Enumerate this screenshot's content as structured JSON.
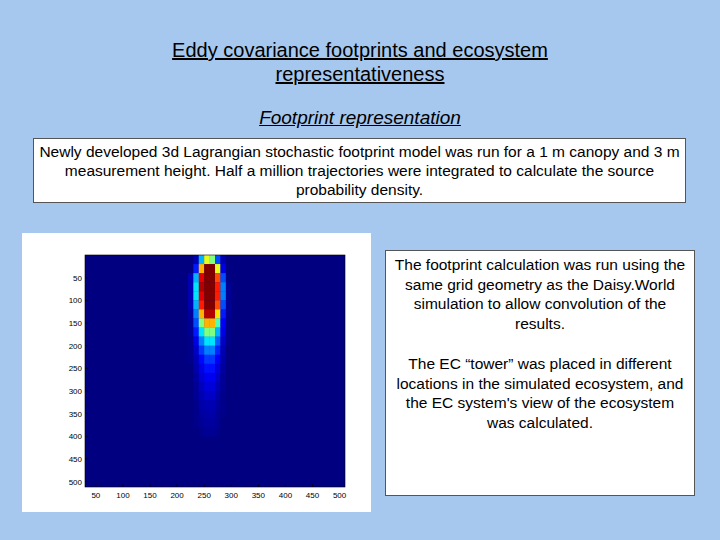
{
  "slide": {
    "title": "Eddy covariance footprints and ecosystem representativeness",
    "subtitle": "Footprint representation",
    "description": "Newly developed 3d Lagrangian stochastic footprint model was run for a 1 m canopy and 3 m measurement height. Half a million trajectories were integrated to calculate the source probability density.",
    "notes": [
      "The footprint calculation was run using the same grid geometry as the Daisy.World simulation to allow convolution of the results.",
      "The EC “tower” was placed in different locations in the simulated ecosystem, and the EC system's view of the ecosystem was calculated."
    ]
  },
  "chart_data": {
    "type": "heatmap",
    "x_edges": [
      220,
      230,
      240,
      250,
      260,
      270,
      280,
      290,
      300
    ],
    "y_edges": [
      0,
      20,
      40,
      60,
      80,
      100,
      120,
      140,
      160,
      180,
      200,
      220,
      240,
      260,
      280,
      300,
      320,
      340,
      360,
      380,
      400
    ],
    "cells": [
      [
        0,
        0.05,
        0.3,
        0.6,
        0.5,
        0.2,
        0.05,
        0
      ],
      [
        0,
        0.15,
        0.7,
        1,
        1,
        0.6,
        0.1,
        0
      ],
      [
        0.05,
        0.3,
        0.9,
        1,
        1,
        0.8,
        0.2,
        0
      ],
      [
        0.05,
        0.35,
        0.95,
        1,
        1,
        0.85,
        0.25,
        0.02
      ],
      [
        0.05,
        0.35,
        0.9,
        1,
        1,
        0.85,
        0.25,
        0.02
      ],
      [
        0.05,
        0.3,
        0.85,
        1,
        1,
        0.8,
        0.2,
        0.02
      ],
      [
        0.03,
        0.25,
        0.7,
        0.95,
        0.95,
        0.65,
        0.15,
        0.02
      ],
      [
        0.02,
        0.2,
        0.5,
        0.7,
        0.7,
        0.45,
        0.12,
        0.01
      ],
      [
        0.02,
        0.15,
        0.35,
        0.5,
        0.5,
        0.3,
        0.1,
        0.01
      ],
      [
        0.01,
        0.1,
        0.25,
        0.35,
        0.35,
        0.22,
        0.07,
        0.01
      ],
      [
        0.01,
        0.07,
        0.18,
        0.25,
        0.25,
        0.16,
        0.05,
        0
      ],
      [
        0.01,
        0.05,
        0.13,
        0.18,
        0.18,
        0.12,
        0.04,
        0
      ],
      [
        0,
        0.04,
        0.1,
        0.14,
        0.14,
        0.09,
        0.03,
        0
      ],
      [
        0,
        0.03,
        0.08,
        0.11,
        0.11,
        0.07,
        0.02,
        0
      ],
      [
        0,
        0.02,
        0.06,
        0.09,
        0.09,
        0.05,
        0.02,
        0
      ],
      [
        0,
        0.02,
        0.05,
        0.07,
        0.07,
        0.04,
        0.01,
        0
      ],
      [
        0,
        0.01,
        0.04,
        0.05,
        0.05,
        0.03,
        0.01,
        0
      ],
      [
        0,
        0.01,
        0.03,
        0.04,
        0.04,
        0.02,
        0.01,
        0
      ],
      [
        0,
        0.01,
        0.02,
        0.03,
        0.03,
        0.02,
        0,
        0
      ],
      [
        0,
        0,
        0.01,
        0.02,
        0.02,
        0.01,
        0,
        0
      ]
    ],
    "color_range": [
      0,
      1
    ],
    "xlim": [
      30,
      510
    ],
    "ylim": [
      512,
      0
    ],
    "xticks": [
      50,
      100,
      150,
      200,
      250,
      300,
      350,
      400,
      450,
      500
    ],
    "yticks": [
      50,
      100,
      150,
      200,
      250,
      300,
      350,
      400,
      450,
      500
    ],
    "grid": false
  }
}
